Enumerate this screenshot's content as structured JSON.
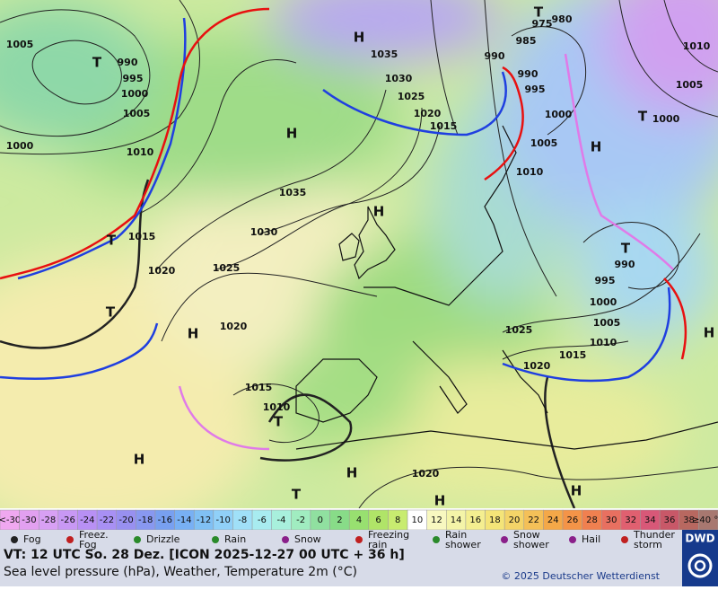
{
  "map": {
    "pressure_labels": [
      "1005",
      "990",
      "995",
      "1000",
      "1005",
      "1000",
      "1010",
      "1015",
      "1020",
      "1025",
      "1030",
      "1035",
      "1020",
      "1015",
      "1010",
      "1035",
      "1030",
      "1025",
      "1020",
      "1015",
      "990",
      "985",
      "975",
      "980",
      "990",
      "995",
      "1000",
      "1005",
      "1010",
      "1010",
      "1005",
      "1000",
      "990",
      "995",
      "1000",
      "1005",
      "1010",
      "1015",
      "1020",
      "1025",
      "1020"
    ],
    "center_labels": [
      "H",
      "H",
      "H",
      "H",
      "H",
      "H",
      "H",
      "H",
      "H",
      "H",
      "T",
      "T",
      "T",
      "T",
      "T",
      "T",
      "T",
      "T"
    ]
  },
  "legend": {
    "scale": [
      "<-30",
      "-30",
      "-28",
      "-26",
      "-24",
      "-22",
      "-20",
      "-18",
      "-16",
      "-14",
      "-12",
      "-10",
      "-8",
      "-6",
      "-4",
      "-2",
      "0",
      "2",
      "4",
      "6",
      "8",
      "10",
      "12",
      "14",
      "16",
      "18",
      "20",
      "22",
      "24",
      "26",
      "28",
      "30",
      "32",
      "34",
      "36",
      "38",
      "≥40 °C"
    ],
    "weather": [
      "Fog",
      "Freez. Fog",
      "Drizzle",
      "Rain",
      "Snow",
      "Freezing rain",
      "Rain shower",
      "Snow shower",
      "Hail",
      "Thunder storm"
    ]
  },
  "footer": {
    "valid_time": "VT: 12 UTC So.  28 Dez. [ICON 2025-12-27  00 UTC + 36 h]",
    "description": "Sea level pressure (hPa), Weather, Temperature 2m (°C)",
    "copyright": "© 2025 Deutscher Wetterdienst",
    "logo": "DWD"
  }
}
